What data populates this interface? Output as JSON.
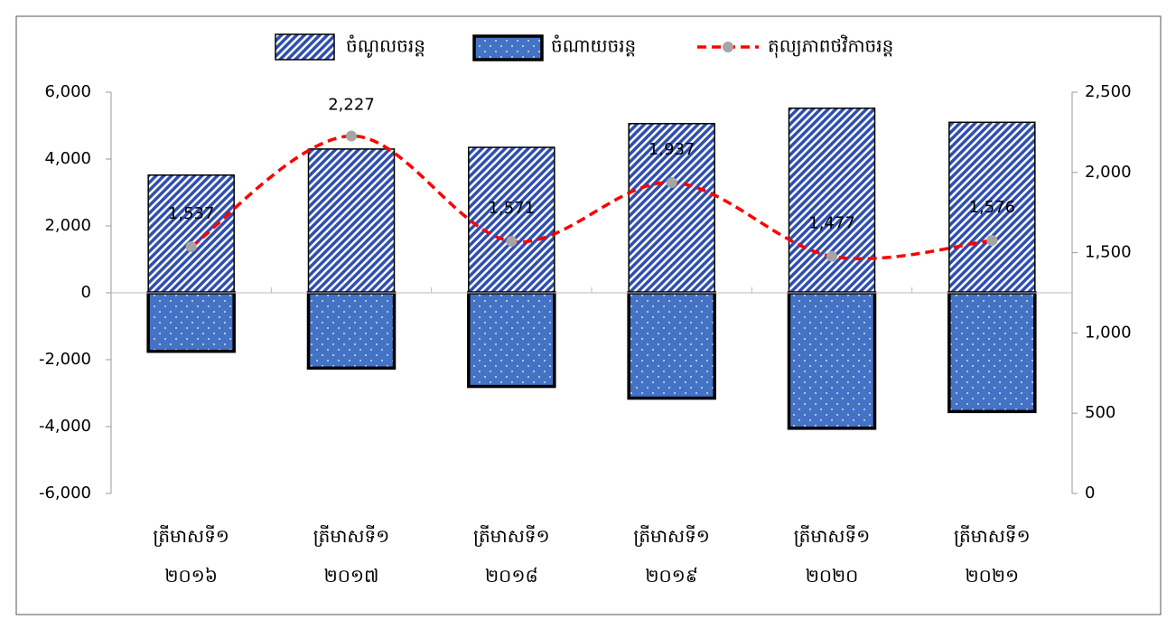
{
  "chart_data": {
    "type": "bar-line",
    "categories": [
      "ត្រីមាសទី១ ២០១៦",
      "ត្រីមាសទី១ ២០១៧",
      "ត្រីមាសទី១ ២០១៨",
      "ត្រីមាសទី១ ២០១៩",
      "ត្រីមាសទី១ ២០២០",
      "ត្រីមាសទី១ ២០២១"
    ],
    "series": [
      {
        "name": "ចំណូលចរន្ត",
        "type": "bar",
        "color": "#2f4fb0",
        "values": [
          3520,
          4300,
          4350,
          5060,
          5520,
          5100
        ]
      },
      {
        "name": "ចំណាយចរន្ត",
        "type": "bar",
        "color": "#4472c4",
        "values": [
          -1750,
          -2250,
          -2800,
          -3150,
          -4050,
          -3550
        ]
      },
      {
        "name": "តុល្យភាពថវិកាចរន្ត",
        "type": "line",
        "axis": "y2",
        "color": "#ff0000",
        "values": [
          1537,
          2227,
          1571,
          1937,
          1477,
          1576
        ],
        "value_labels": [
          "1,537",
          "2,227",
          "1,571",
          "1,937",
          "1,477",
          "1,576"
        ]
      }
    ],
    "ylim": [
      -6000,
      6000
    ],
    "yticks": [
      {
        "value": -6000,
        "label": "-6,000"
      },
      {
        "value": -4000,
        "label": "-4,000"
      },
      {
        "value": -2000,
        "label": "-2,000"
      },
      0,
      {
        "value": 2000,
        "label": "2,000"
      },
      {
        "value": 4000,
        "label": "4,000"
      },
      {
        "value": 6000,
        "label": "6,000"
      }
    ],
    "y2lim": [
      0,
      2500
    ],
    "y2ticks": [
      0,
      500,
      {
        "value": 1000,
        "label": "1,000"
      },
      {
        "value": 1500,
        "label": "1,500"
      },
      {
        "value": 2000,
        "label": "2,000"
      },
      {
        "value": 2500,
        "label": "2,500"
      }
    ],
    "legend": "top"
  }
}
